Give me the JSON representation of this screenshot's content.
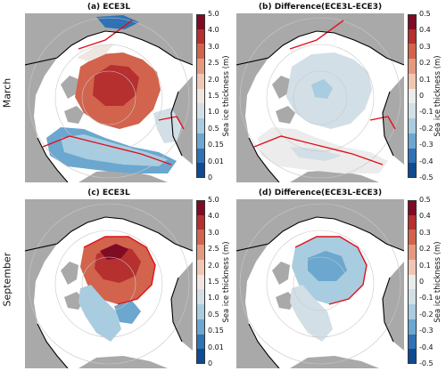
{
  "rows": [
    {
      "label": "March"
    },
    {
      "label": "September"
    }
  ],
  "panels": [
    {
      "title": "(a) ECE3L",
      "kind": "thickness"
    },
    {
      "title": "(b) Difference(ECE3L-ECE3)",
      "kind": "difference"
    },
    {
      "title": "(c) ECE3L",
      "kind": "thickness"
    },
    {
      "title": "(d) Difference(ECE3L-ECE3)",
      "kind": "difference"
    }
  ],
  "colorbars": {
    "thickness": {
      "label": "Sea ice thickness (m)",
      "ticks": [
        "5.0",
        "4.0",
        "3.0",
        "2.5",
        "2.0",
        "1.5",
        "1.0",
        "0.5",
        "0.15",
        "0.01",
        "0"
      ],
      "colors": [
        "#7f0b25",
        "#b5302f",
        "#d2634d",
        "#e59a7f",
        "#f1c7b3",
        "#f0e6e1",
        "#d3dfe6",
        "#a8cce0",
        "#6ba7cf",
        "#2f72b5",
        "#0f4a93"
      ]
    },
    "difference": {
      "label": "Sea ice thickness (m)",
      "ticks": [
        "0.5",
        "0.4",
        "0.3",
        "0.2",
        "0.1",
        "0",
        "-0.1",
        "-0.2",
        "-0.3",
        "-0.4",
        "-0.5"
      ],
      "colors": [
        "#7f0b25",
        "#b5302f",
        "#d2634d",
        "#e59a7f",
        "#f1c7b3",
        "#ececec",
        "#d3dfe6",
        "#a8cce0",
        "#6ba7cf",
        "#2f72b5",
        "#0f4a93"
      ]
    }
  },
  "colors": {
    "land": "#a9a9a9",
    "ocean": "#ffffff",
    "coastline": "#000000",
    "ice_edge": "#e0101a",
    "grid": "#c8c8c8"
  }
}
